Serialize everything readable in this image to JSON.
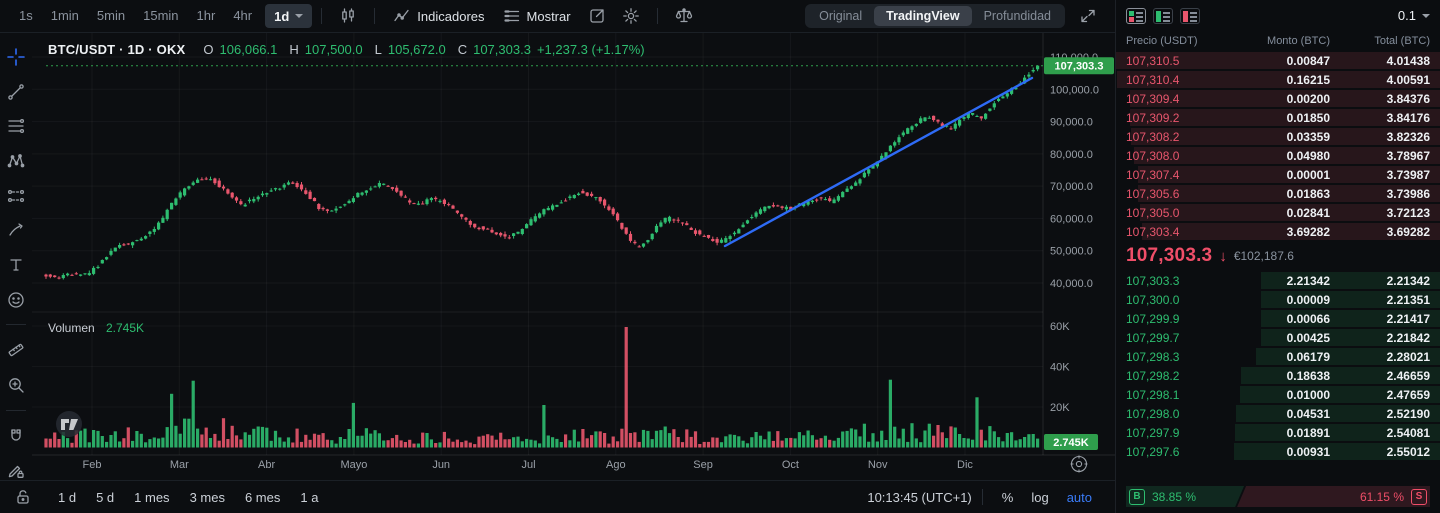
{
  "toolbar": {
    "timeframes": [
      "1s",
      "1min",
      "5min",
      "15min",
      "1hr",
      "4hr"
    ],
    "active_timeframe": "1d",
    "indicators_label": "Indicadores",
    "show_label": "Mostrar",
    "view_tabs": [
      "Original",
      "TradingView",
      "Profundidad"
    ],
    "active_view_tab": "TradingView"
  },
  "left_tools": [
    "crosshair",
    "trend-line",
    "fib-lines",
    "xabcd-pattern",
    "forecast",
    "brush",
    "text",
    "emoji",
    "|",
    "ruler",
    "zoom-in",
    "|",
    "magnet",
    "draw-lock"
  ],
  "chart_header": {
    "title": "BTC/USDT · 1D · OKX",
    "o_label": "O",
    "o": "106,066.1",
    "h_label": "H",
    "h": "107,500.0",
    "l_label": "L",
    "l": "105,672.0",
    "c_label": "C",
    "c": "107,303.3",
    "change": "+1,237.3 (+1.17%)"
  },
  "chart_data": {
    "type": "candlestick+volume",
    "symbol": "BTC/USDT",
    "interval": "1D",
    "exchange": "OKX",
    "title": "BTC/USDT daily candles with volume",
    "y_ticks": [
      {
        "v": 110000,
        "label": "110,000.0"
      },
      {
        "v": 100000,
        "label": "100,000.0"
      },
      {
        "v": 90000,
        "label": "90,000.0"
      },
      {
        "v": 80000,
        "label": "80,000.0"
      },
      {
        "v": 70000,
        "label": "70,000.0"
      },
      {
        "v": 60000,
        "label": "60,000.0"
      },
      {
        "v": 50000,
        "label": "50,000.0"
      },
      {
        "v": 40000,
        "label": "40,000.0"
      }
    ],
    "volume_ticks": [
      {
        "v": 60000,
        "label": "60K"
      },
      {
        "v": 40000,
        "label": "40K"
      },
      {
        "v": 20000,
        "label": "20K"
      }
    ],
    "x_axis_labels": [
      "Feb",
      "Mar",
      "Abr",
      "Mayo",
      "Jun",
      "Jul",
      "Ago",
      "Sep",
      "Oct",
      "Nov",
      "Dic"
    ],
    "last_price_label": "107,303.3",
    "volume_label": "Volumen",
    "volume_value": "2.745K",
    "price_path": [
      [
        45,
        42500
      ],
      [
        58,
        41600
      ],
      [
        70,
        42800
      ],
      [
        80,
        42200
      ],
      [
        92,
        43200
      ],
      [
        100,
        45500
      ],
      [
        112,
        49500
      ],
      [
        122,
        51800
      ],
      [
        132,
        52300
      ],
      [
        142,
        53500
      ],
      [
        152,
        55500
      ],
      [
        163,
        59000
      ],
      [
        172,
        64000
      ],
      [
        182,
        67500
      ],
      [
        193,
        70500
      ],
      [
        203,
        72200
      ],
      [
        212,
        72800
      ],
      [
        222,
        70000
      ],
      [
        232,
        67000
      ],
      [
        242,
        64000
      ],
      [
        252,
        65500
      ],
      [
        262,
        67000
      ],
      [
        272,
        68800
      ],
      [
        282,
        69500
      ],
      [
        292,
        70800
      ],
      [
        302,
        69800
      ],
      [
        312,
        66500
      ],
      [
        322,
        62800
      ],
      [
        332,
        61800
      ],
      [
        342,
        63500
      ],
      [
        352,
        65500
      ],
      [
        362,
        67800
      ],
      [
        372,
        69500
      ],
      [
        382,
        70500
      ],
      [
        392,
        69800
      ],
      [
        402,
        67500
      ],
      [
        412,
        65000
      ],
      [
        422,
        64200
      ],
      [
        432,
        66000
      ],
      [
        442,
        65500
      ],
      [
        452,
        63800
      ],
      [
        462,
        60500
      ],
      [
        472,
        58200
      ],
      [
        482,
        57000
      ],
      [
        492,
        55800
      ],
      [
        502,
        54800
      ],
      [
        512,
        54300
      ],
      [
        522,
        56000
      ],
      [
        532,
        59000
      ],
      [
        542,
        61800
      ],
      [
        552,
        63200
      ],
      [
        562,
        65000
      ],
      [
        572,
        66800
      ],
      [
        582,
        68200
      ],
      [
        592,
        67200
      ],
      [
        602,
        65500
      ],
      [
        612,
        62500
      ],
      [
        622,
        58000
      ],
      [
        632,
        52800
      ],
      [
        642,
        50800
      ],
      [
        652,
        54500
      ],
      [
        662,
        59000
      ],
      [
        672,
        60200
      ],
      [
        682,
        58800
      ],
      [
        692,
        56800
      ],
      [
        702,
        55000
      ],
      [
        712,
        53800
      ],
      [
        722,
        52700
      ],
      [
        732,
        54500
      ],
      [
        742,
        57500
      ],
      [
        752,
        60500
      ],
      [
        762,
        62500
      ],
      [
        772,
        63800
      ],
      [
        782,
        63500
      ],
      [
        792,
        63000
      ],
      [
        802,
        64200
      ],
      [
        812,
        65500
      ],
      [
        822,
        66200
      ],
      [
        832,
        65300
      ],
      [
        842,
        67000
      ],
      [
        852,
        69500
      ],
      [
        862,
        72500
      ],
      [
        872,
        75500
      ],
      [
        882,
        78500
      ],
      [
        892,
        82000
      ],
      [
        902,
        85500
      ],
      [
        912,
        88000
      ],
      [
        922,
        90500
      ],
      [
        932,
        91800
      ],
      [
        942,
        89000
      ],
      [
        952,
        87800
      ],
      [
        962,
        90500
      ],
      [
        972,
        92800
      ],
      [
        982,
        90500
      ],
      [
        992,
        94500
      ],
      [
        1002,
        97500
      ],
      [
        1012,
        99500
      ],
      [
        1022,
        102000
      ],
      [
        1030,
        104800
      ],
      [
        1036,
        106500
      ],
      [
        1040,
        107303
      ]
    ],
    "volume_profile": [
      [
        45,
        1.0
      ],
      [
        150,
        1.3
      ],
      [
        200,
        2.0
      ],
      [
        240,
        1.3
      ],
      [
        320,
        1.0
      ],
      [
        400,
        1.1
      ],
      [
        470,
        0.9
      ],
      [
        540,
        1.0
      ],
      [
        610,
        1.0
      ],
      [
        660,
        1.15
      ],
      [
        730,
        0.75
      ],
      [
        800,
        0.95
      ],
      [
        870,
        1.3
      ],
      [
        920,
        1.35
      ],
      [
        980,
        1.2
      ],
      [
        1040,
        0.9
      ]
    ],
    "volume_spikes": [
      [
        172,
        26500
      ],
      [
        195,
        33000
      ],
      [
        355,
        22000
      ],
      [
        545,
        21000
      ],
      [
        627,
        59500
      ],
      [
        890,
        33500
      ],
      [
        975,
        24800
      ]
    ],
    "trendline": {
      "x1": 725,
      "y1": 246,
      "x2": 1032,
      "y2": 78
    },
    "colors": {
      "up": "#2ebd70",
      "down": "#e8566d",
      "tag_bg": "#2f9e4c",
      "trend": "#2e6bf6",
      "axis_text": "#9aa0a8"
    }
  },
  "bottom_bar": {
    "ranges": [
      "1 d",
      "5 d",
      "1 mes",
      "3 mes",
      "6 mes",
      "1 a"
    ],
    "clock": "10:13:45 (UTC+1)",
    "percent_label": "%",
    "log_label": "log",
    "auto_label": "auto"
  },
  "orderbook": {
    "precision": "0.1",
    "columns": [
      "Precio (USDT)",
      "Monto (BTC)",
      "Total (BTC)"
    ],
    "max_total": 4.01438,
    "asks": [
      {
        "price": "107,310.5",
        "amount": "0.00847",
        "total": "4.01438"
      },
      {
        "price": "107,310.4",
        "amount": "0.16215",
        "total": "4.00591"
      },
      {
        "price": "107,309.4",
        "amount": "0.00200",
        "total": "3.84376"
      },
      {
        "price": "107,309.2",
        "amount": "0.01850",
        "total": "3.84176"
      },
      {
        "price": "107,308.2",
        "amount": "0.03359",
        "total": "3.82326"
      },
      {
        "price": "107,308.0",
        "amount": "0.04980",
        "total": "3.78967"
      },
      {
        "price": "107,307.4",
        "amount": "0.00001",
        "total": "3.73987"
      },
      {
        "price": "107,305.6",
        "amount": "0.01863",
        "total": "3.73986"
      },
      {
        "price": "107,305.0",
        "amount": "0.02841",
        "total": "3.72123"
      },
      {
        "price": "107,303.4",
        "amount": "3.69282",
        "total": "3.69282"
      }
    ],
    "last_price": "107,303.3",
    "direction": "down",
    "fiat_value": "€102,187.6",
    "bids": [
      {
        "price": "107,303.3",
        "amount": "2.21342",
        "total": "2.21342"
      },
      {
        "price": "107,300.0",
        "amount": "0.00009",
        "total": "2.21351"
      },
      {
        "price": "107,299.9",
        "amount": "0.00066",
        "total": "2.21417"
      },
      {
        "price": "107,299.7",
        "amount": "0.00425",
        "total": "2.21842"
      },
      {
        "price": "107,298.3",
        "amount": "0.06179",
        "total": "2.28021"
      },
      {
        "price": "107,298.2",
        "amount": "0.18638",
        "total": "2.46659"
      },
      {
        "price": "107,298.1",
        "amount": "0.01000",
        "total": "2.47659"
      },
      {
        "price": "107,298.0",
        "amount": "0.04531",
        "total": "2.52190"
      },
      {
        "price": "107,297.9",
        "amount": "0.01891",
        "total": "2.54081"
      },
      {
        "price": "107,297.6",
        "amount": "0.00931",
        "total": "2.55012"
      }
    ],
    "buy_badge": "B",
    "sell_badge": "S",
    "buy_pct": "38.85 %",
    "sell_pct": "61.15 %",
    "buy_ratio": 38.85
  }
}
